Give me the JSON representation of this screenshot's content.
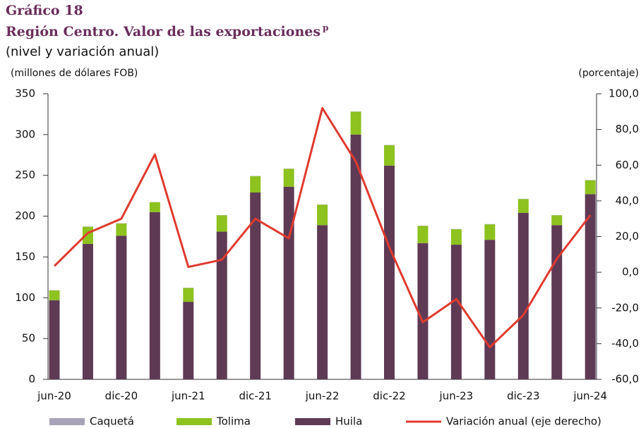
{
  "chart_data": {
    "type": "bar",
    "title": "Gráfico 18",
    "subtitle": "Región Centro. Valor de las exportaciones",
    "subtitle_note": "p",
    "caption": "(nivel y variación anual)",
    "y_label": "(millones de dólares FOB)",
    "y2_label": "(porcentaje)",
    "stacked": true,
    "categories": [
      "jun-20",
      null,
      "dic-20",
      null,
      "jun-21",
      null,
      "dic-21",
      null,
      "jun-22",
      null,
      "dic-22",
      null,
      "jun-23",
      null,
      "dic-23",
      null,
      "jun-24"
    ],
    "series": [
      {
        "name": "Caquetá",
        "color": "#a8a3b8",
        "values": [
          0.3,
          0.3,
          0.3,
          0.3,
          0.3,
          0.3,
          0.3,
          0.3,
          0.3,
          0.3,
          0.3,
          0.3,
          0.3,
          0.3,
          0.3,
          0.3,
          0.3
        ]
      },
      {
        "name": "Tolima",
        "color": "#8dc21f",
        "values": [
          12,
          21,
          15,
          12,
          17,
          20,
          20,
          22,
          25,
          28,
          25,
          21,
          19,
          19,
          17,
          12,
          17
        ]
      },
      {
        "name": "Huila",
        "color": "#5e3a55",
        "values": [
          97,
          166,
          176,
          205,
          95,
          181,
          229,
          236,
          189,
          300,
          262,
          167,
          165,
          171,
          204,
          189,
          227
        ]
      },
      {
        "name": "Variación anual (eje derecho)",
        "color": "#e03a2f",
        "type": "line",
        "axis": "y2",
        "values": [
          3.5,
          22,
          30,
          66,
          3,
          7,
          30,
          19,
          92,
          62,
          14,
          -28,
          -15,
          -42,
          -24,
          7.5,
          32
        ]
      }
    ],
    "ylim": [
      0,
      350
    ],
    "yticks": [
      0,
      50,
      100,
      150,
      200,
      250,
      300,
      350
    ],
    "y2lim": [
      -60,
      100
    ],
    "y2ticks": [
      {
        "value": -60,
        "label": "-60,0"
      },
      {
        "value": -40,
        "label": "-40,0"
      },
      {
        "value": -20,
        "label": "-20,0"
      },
      {
        "value": 0,
        "label": "0,0"
      },
      {
        "value": 20,
        "label": "20,0"
      },
      {
        "value": 40,
        "label": "40,0"
      },
      {
        "value": 60,
        "label": "60,0"
      },
      {
        "value": 80,
        "label": "80,0"
      },
      {
        "value": 100,
        "label": "100,0"
      }
    ],
    "grid": false,
    "legend": "bottom"
  }
}
